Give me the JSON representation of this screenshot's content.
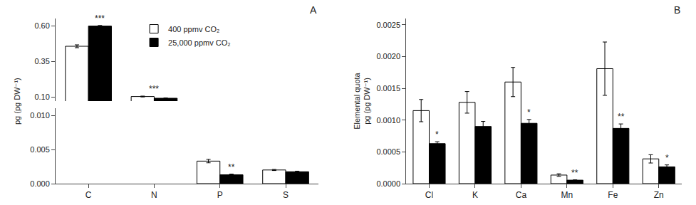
{
  "chart_data": [
    {
      "type": "bar",
      "title": "A",
      "ylabel": "pg (pg DW⁻¹)",
      "categories": [
        "C",
        "N",
        "P",
        "S"
      ],
      "series": [
        {
          "name": "400 ppmv CO₂",
          "color": "white",
          "values": [
            0.455,
            0.102,
            null,
            null
          ],
          "errors": [
            0.01,
            0.003,
            null,
            null
          ]
        },
        {
          "name": "25,000 ppmv CO₂",
          "color": "black",
          "values": [
            0.597,
            0.09,
            null,
            null
          ],
          "errors": [
            0.004,
            0.002,
            null,
            null
          ]
        }
      ],
      "ylim": [
        0.07,
        0.65
      ],
      "yticks": [
        {
          "value": 0.1,
          "label": "0.10"
        },
        {
          "value": 0.35,
          "label": "0.35"
        },
        {
          "value": 0.6,
          "label": "0.60"
        }
      ],
      "annotations": [
        {
          "text": "***",
          "category": "C",
          "series": "25,000 ppmv CO₂"
        },
        {
          "text": "***",
          "category": "N"
        }
      ],
      "legend": "upper center",
      "grid": false,
      "tick_labels": "y"
    },
    {
      "type": "bar",
      "categories": [
        "C",
        "N",
        "P",
        "S"
      ],
      "series": [
        {
          "name": "400 ppmv CO₂",
          "color": "white",
          "values": [
            null,
            null,
            0.0033,
            0.002
          ],
          "errors": [
            null,
            null,
            0.00025,
            8e-05
          ]
        },
        {
          "name": "25,000 ppmv CO₂",
          "color": "black",
          "values": [
            null,
            null,
            0.0013,
            0.00175
          ],
          "errors": [
            null,
            null,
            0.0001,
            8e-05
          ]
        }
      ],
      "ylim": [
        0.0,
        0.011
      ],
      "yticks": [
        {
          "value": 0.0,
          "label": "0.000"
        },
        {
          "value": 0.005,
          "label": "0.005"
        },
        {
          "value": 0.01,
          "label": "0.010"
        }
      ],
      "annotations": [
        {
          "text": "**",
          "category": "P",
          "series": "25,000 ppmv CO₂"
        }
      ],
      "grid": false
    },
    {
      "type": "bar",
      "title": "B",
      "ylabel": "Elemental quota\npg (pg DW⁻¹)",
      "categories": [
        "Cl",
        "K",
        "Ca",
        "Mn",
        "Fe",
        "Zn"
      ],
      "series": [
        {
          "name": "400 ppmv CO₂",
          "color": "white",
          "values": [
            0.00115,
            0.00128,
            0.0016,
            0.000135,
            0.00181,
            0.00039
          ],
          "errors": [
            0.000175,
            0.00017,
            0.00023,
            2e-05,
            0.00042,
            6.5e-05
          ]
        },
        {
          "name": "25,000 ppmv CO₂",
          "color": "black",
          "values": [
            0.00063,
            0.0009,
            0.00095,
            5.5e-05,
            0.00087,
            0.000265
          ],
          "errors": [
            3e-05,
            8e-05,
            6e-05,
            5e-06,
            7e-05,
            3e-05
          ]
        }
      ],
      "ylim": [
        0.0,
        0.0026
      ],
      "yticks": [
        {
          "value": 0.0,
          "label": "0.0000"
        },
        {
          "value": 0.0005,
          "label": "0.0005"
        },
        {
          "value": 0.001,
          "label": "0.0010"
        },
        {
          "value": 0.0015,
          "label": "0.0015"
        },
        {
          "value": 0.002,
          "label": "0.0020"
        },
        {
          "value": 0.0025,
          "label": "0.0025"
        }
      ],
      "annotations": [
        {
          "text": "*",
          "category": "Cl",
          "series": "25,000 ppmv CO₂"
        },
        {
          "text": "*",
          "category": "Ca",
          "series": "25,000 ppmv CO₂"
        },
        {
          "text": "**",
          "category": "Mn",
          "series": "25,000 ppmv CO₂"
        },
        {
          "text": "**",
          "category": "Fe",
          "series": "25,000 ppmv CO₂"
        },
        {
          "text": "*",
          "category": "Zn",
          "series": "25,000 ppmv CO₂"
        }
      ],
      "grid": false
    }
  ]
}
